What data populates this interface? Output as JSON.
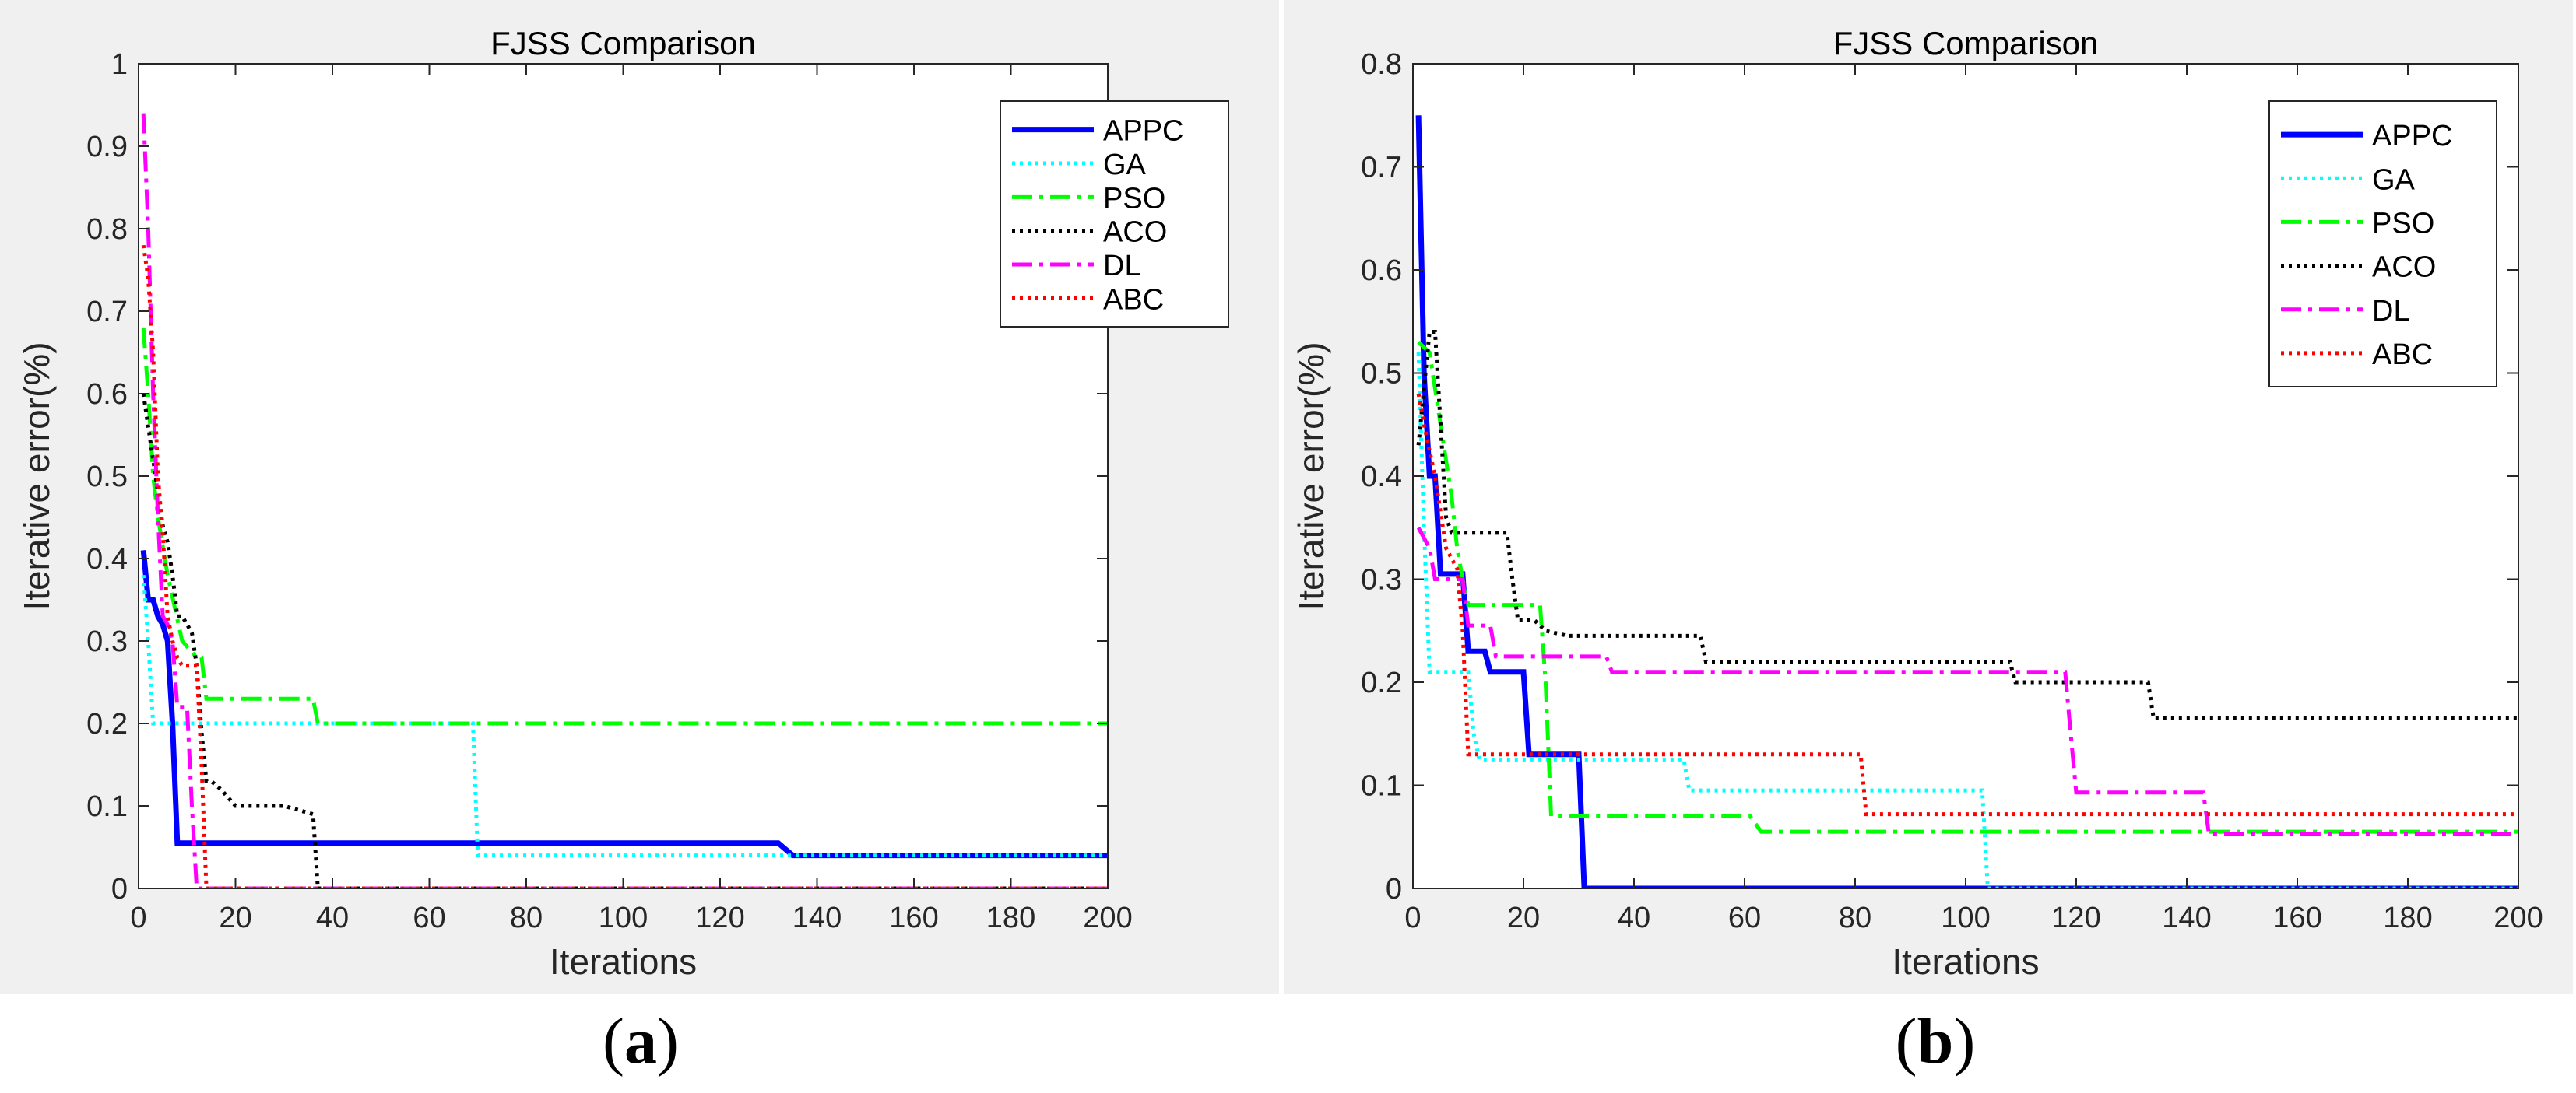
{
  "figure": {
    "panels": [
      {
        "caption_open": "(",
        "caption_letter": "a",
        "caption_close": ")"
      },
      {
        "caption_open": "(",
        "caption_letter": "b",
        "caption_close": ")"
      }
    ]
  },
  "chart_data": [
    {
      "type": "line",
      "title": "FJSS Comparison",
      "xlabel": "Iterations",
      "ylabel": "Iterative error(%)",
      "xlim": [
        0,
        200
      ],
      "ylim": [
        0,
        1
      ],
      "xticks": [
        0,
        20,
        40,
        60,
        80,
        100,
        120,
        140,
        160,
        180,
        200
      ],
      "yticks": [
        0,
        0.1,
        0.2,
        0.3,
        0.4,
        0.5,
        0.6,
        0.7,
        0.8,
        0.9,
        1
      ],
      "ytick_labels": [
        "0",
        "0.1",
        "0.2",
        "0.3",
        "0.4",
        "0.5",
        "0.6",
        "0.7",
        "0.8",
        "0.9",
        "1"
      ],
      "legend_position": "top-right",
      "series": [
        {
          "name": "APPC",
          "color": "#0000ff",
          "dash": "solid",
          "x": [
            1,
            2,
            3,
            4,
            5,
            6,
            7,
            8,
            132,
            135,
            200
          ],
          "y": [
            0.41,
            0.35,
            0.35,
            0.33,
            0.32,
            0.3,
            0.2,
            0.055,
            0.055,
            0.04,
            0.04
          ]
        },
        {
          "name": "GA",
          "color": "#00ffff",
          "dash": "dot",
          "x": [
            1,
            2,
            3,
            4,
            69,
            70,
            200
          ],
          "y": [
            0.38,
            0.3,
            0.2,
            0.2,
            0.2,
            0.04,
            0.04
          ]
        },
        {
          "name": "PSO",
          "color": "#00ff00",
          "dash": "dashdot",
          "x": [
            1,
            2,
            3,
            4,
            6,
            9,
            12,
            13,
            14,
            36,
            37,
            200
          ],
          "y": [
            0.68,
            0.6,
            0.5,
            0.45,
            0.38,
            0.3,
            0.28,
            0.28,
            0.23,
            0.23,
            0.2,
            0.2
          ]
        },
        {
          "name": "ACO",
          "color": "#000000",
          "dash": "dot",
          "x": [
            1,
            2,
            3,
            5,
            6,
            7,
            8,
            9,
            11,
            12,
            13,
            14,
            15,
            17,
            20,
            25,
            30,
            36,
            37,
            200
          ],
          "y": [
            0.6,
            0.56,
            0.52,
            0.44,
            0.42,
            0.38,
            0.33,
            0.33,
            0.31,
            0.27,
            0.19,
            0.13,
            0.13,
            0.12,
            0.1,
            0.1,
            0.1,
            0.09,
            0,
            0
          ]
        },
        {
          "name": "DL",
          "color": "#ff00ff",
          "dash": "dashdot",
          "x": [
            1,
            2,
            3,
            4,
            5,
            6,
            7,
            8,
            10,
            11,
            12,
            200
          ],
          "y": [
            0.94,
            0.8,
            0.6,
            0.45,
            0.33,
            0.32,
            0.3,
            0.22,
            0.22,
            0.1,
            0,
            0
          ]
        },
        {
          "name": "ABC",
          "color": "#ff0000",
          "dash": "dot",
          "x": [
            1,
            2,
            3,
            4,
            5,
            6,
            7,
            8,
            9,
            10,
            12,
            13,
            14,
            200
          ],
          "y": [
            0.78,
            0.74,
            0.65,
            0.5,
            0.43,
            0.33,
            0.3,
            0.28,
            0.27,
            0.27,
            0.27,
            0.15,
            0,
            0
          ]
        }
      ]
    },
    {
      "type": "line",
      "title": "FJSS Comparison",
      "xlabel": "Iterations",
      "ylabel": "Iterative error(%)",
      "xlim": [
        0,
        200
      ],
      "ylim": [
        0,
        0.8
      ],
      "xticks": [
        0,
        20,
        40,
        60,
        80,
        100,
        120,
        140,
        160,
        180,
        200
      ],
      "yticks": [
        0,
        0.1,
        0.2,
        0.3,
        0.4,
        0.5,
        0.6,
        0.7,
        0.8
      ],
      "ytick_labels": [
        "0",
        "0.1",
        "0.2",
        "0.3",
        "0.4",
        "0.5",
        "0.6",
        "0.7",
        "0.8"
      ],
      "legend_position": "top-right",
      "series": [
        {
          "name": "APPC",
          "color": "#0000ff",
          "dash": "solid",
          "x": [
            1,
            2,
            3,
            4,
            5,
            9,
            10,
            13,
            14,
            20,
            21,
            30,
            31,
            200
          ],
          "y": [
            0.75,
            0.5,
            0.4,
            0.4,
            0.305,
            0.305,
            0.23,
            0.23,
            0.21,
            0.21,
            0.13,
            0.13,
            0,
            0
          ]
        },
        {
          "name": "GA",
          "color": "#00ffff",
          "dash": "dot",
          "x": [
            1,
            2,
            3,
            10,
            11,
            12,
            49,
            50,
            103,
            104,
            200
          ],
          "y": [
            0.52,
            0.35,
            0.21,
            0.21,
            0.15,
            0.125,
            0.125,
            0.095,
            0.095,
            0,
            0
          ]
        },
        {
          "name": "PSO",
          "color": "#00ff00",
          "dash": "dashdot",
          "x": [
            1,
            3,
            5,
            7,
            8,
            9,
            10,
            23,
            24,
            25,
            61,
            63,
            200
          ],
          "y": [
            0.53,
            0.52,
            0.45,
            0.38,
            0.33,
            0.3,
            0.275,
            0.275,
            0.2,
            0.07,
            0.07,
            0.055,
            0.055
          ]
        },
        {
          "name": "ACO",
          "color": "#000000",
          "dash": "dot",
          "x": [
            1,
            3,
            4,
            6,
            7,
            17,
            18,
            19,
            22,
            24,
            28,
            52,
            53,
            108,
            109,
            133,
            134,
            200
          ],
          "y": [
            0.43,
            0.54,
            0.54,
            0.36,
            0.345,
            0.345,
            0.3,
            0.26,
            0.26,
            0.25,
            0.245,
            0.245,
            0.22,
            0.22,
            0.2,
            0.2,
            0.165,
            0.165
          ]
        },
        {
          "name": "DL",
          "color": "#ff00ff",
          "dash": "dashdot",
          "x": [
            1,
            3,
            4,
            5,
            9,
            10,
            14,
            15,
            35,
            36,
            118,
            119,
            120,
            143,
            144,
            200
          ],
          "y": [
            0.35,
            0.33,
            0.3,
            0.3,
            0.3,
            0.255,
            0.255,
            0.225,
            0.225,
            0.21,
            0.21,
            0.15,
            0.093,
            0.093,
            0.053,
            0.053
          ]
        },
        {
          "name": "ABC",
          "color": "#ff0000",
          "dash": "dot",
          "x": [
            1,
            2,
            4,
            6,
            8,
            9,
            10,
            81,
            82,
            143,
            144,
            200
          ],
          "y": [
            0.48,
            0.45,
            0.4,
            0.33,
            0.31,
            0.25,
            0.13,
            0.13,
            0.072,
            0.072,
            0.072,
            0.072
          ]
        }
      ]
    }
  ]
}
